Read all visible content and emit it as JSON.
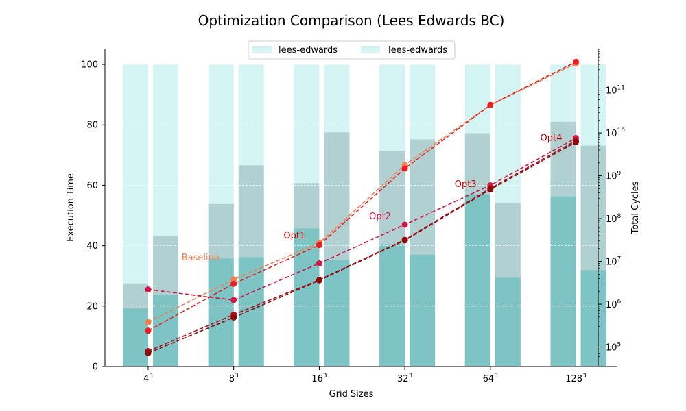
{
  "chart_data": {
    "type": "bar",
    "title": "Optimization Comparison (Lees Edwards BC)",
    "xlabel": "Grid Sizes",
    "ylabel": "Execution Time",
    "y2label": "Total Cycles",
    "ylim": [
      0,
      105
    ],
    "y2_scale": "log",
    "y2lim": [
      35000,
      900000000000
    ],
    "categories": [
      "4",
      "8",
      "16",
      "32",
      "64",
      "128"
    ],
    "category_exponent": "3",
    "yticks": [
      0,
      20,
      40,
      60,
      80,
      100
    ],
    "y2ticks": [
      {
        "value": 100000,
        "base": "10",
        "exp": "5"
      },
      {
        "value": 1000000,
        "base": "10",
        "exp": "6"
      },
      {
        "value": 10000000,
        "base": "10",
        "exp": "7"
      },
      {
        "value": 100000000,
        "base": "10",
        "exp": "8"
      },
      {
        "value": 1000000000,
        "base": "10",
        "exp": "9"
      },
      {
        "value": 10000000000,
        "base": "10",
        "exp": "10"
      },
      {
        "value": 100000000000,
        "base": "10",
        "exp": "11"
      }
    ],
    "legend": {
      "placement": "top-center",
      "entries": [
        "lees-edwards",
        "lees-edwards"
      ]
    },
    "bar_groups": [
      {
        "name": "lees-edwards",
        "totals": [
          100,
          100,
          100,
          100,
          100,
          100
        ],
        "mid": [
          27.5,
          53.8,
          60.7,
          71.2,
          77.2,
          81.0
        ],
        "low": [
          19.2,
          35.8,
          45.7,
          40.5,
          57.0,
          56.3
        ]
      },
      {
        "name": "lees-edwards",
        "totals": [
          100,
          100,
          100,
          100,
          100,
          100
        ],
        "mid": [
          43.3,
          66.6,
          77.5,
          75.2,
          54.0,
          73.1
        ],
        "low": [
          23.7,
          36.2,
          35.4,
          37.0,
          29.4,
          31.9
        ]
      }
    ],
    "series": [
      {
        "name": "Baseline",
        "color": "#f08050",
        "values": [
          380000,
          3800000,
          27000000,
          1800000000,
          45000000000,
          420000000000
        ]
      },
      {
        "name": "Opt1",
        "color": "#e82020",
        "values": [
          240000,
          3000000,
          24000000,
          1480000000,
          45000000000,
          460000000000
        ]
      },
      {
        "name": "Opt2",
        "color": "#d01848",
        "values": [
          2200000,
          1250000,
          9000000,
          72000000,
          600000000,
          7600000000
        ]
      },
      {
        "name": "Opt3",
        "color": "#b01020",
        "values": [
          80000,
          570000,
          3700000,
          32000000,
          510000000,
          6600000000
        ]
      },
      {
        "name": "Opt4",
        "color": "#8b0a0a",
        "values": [
          72000,
          490000,
          3600000,
          31000000,
          480000000,
          6100000000
        ]
      }
    ],
    "annotations": [
      {
        "text": "Baseline",
        "series": 0,
        "color": "#f08050"
      },
      {
        "text": "Opt1",
        "series": 1,
        "color": "#cc0000"
      },
      {
        "text": "Opt2",
        "series": 2,
        "color": "#d01848"
      },
      {
        "text": "Opt3",
        "series": 3,
        "color": "#cc0000"
      },
      {
        "text": "Opt4",
        "series": 4,
        "color": "#aa0000"
      }
    ],
    "colors": {
      "bar_total": "#d5f5f5",
      "bar_mid": "#b0d0d2",
      "bar_low": "#7fc4c4",
      "legend_patch": "#d5f5f5"
    },
    "grid": "horizontal"
  }
}
